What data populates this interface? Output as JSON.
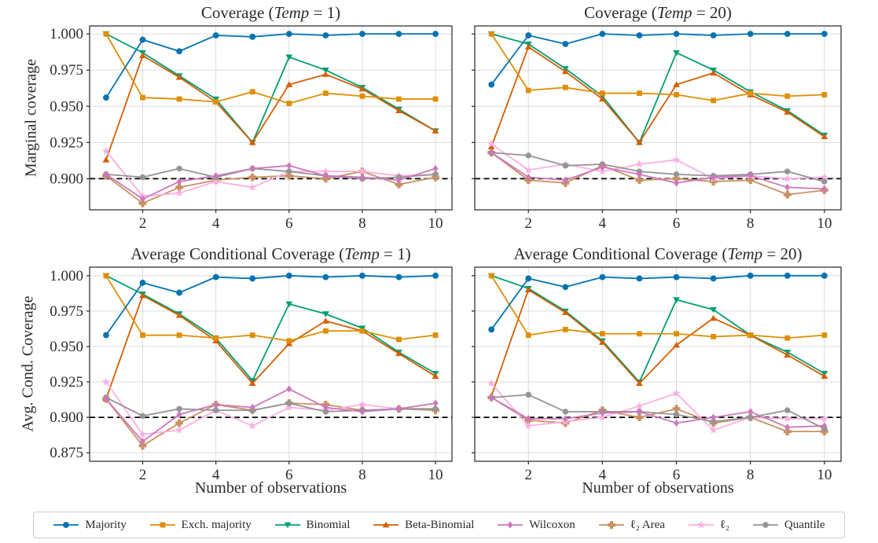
{
  "figure": {
    "x_label": "Number of observations",
    "x_ticks": [
      2,
      4,
      6,
      8,
      10
    ],
    "x_tick_labels": [
      "2",
      "4",
      "6",
      "8",
      "10"
    ],
    "x_range": [
      0.55,
      10.45
    ],
    "dashed_line_y": 0.9,
    "grid_color": "#dcdcdc",
    "spine_color": "#262626",
    "dashed_line_color": "#000000",
    "background_color": "#ffffff",
    "legend_border_color": "#cccccc"
  },
  "series_meta": [
    {
      "name": "Majority",
      "slug": "majority",
      "color": "#0173b2",
      "marker": "circle"
    },
    {
      "name": "Exch. majority",
      "slug": "exch-majority",
      "color": "#de8f05",
      "marker": "square"
    },
    {
      "name": "Binomial",
      "slug": "binomial",
      "color": "#029e73",
      "marker": "triangle-down"
    },
    {
      "name": "Beta-Binomial",
      "slug": "beta-binomial",
      "color": "#d55e00",
      "marker": "triangle-up"
    },
    {
      "name": "Wilcoxon",
      "slug": "wilcoxon",
      "color": "#cc78bc",
      "marker": "diamond"
    },
    {
      "name": "ℓ₂ Area",
      "slug": "l2-area",
      "color": "#ca9161",
      "marker": "plus"
    },
    {
      "name": "ℓ₂",
      "slug": "l2",
      "color": "#fbafe4",
      "marker": "star"
    },
    {
      "name": "Quantile",
      "slug": "quantile",
      "color": "#949494",
      "marker": "octagon"
    }
  ],
  "chart_data": [
    {
      "type": "line",
      "title": "Coverage (Temp = 1)",
      "title_parts": {
        "pre": "Coverage (",
        "math": "Temp",
        "post": " = 1)"
      },
      "ylabel": "Marginal coverage",
      "xlabel": "",
      "x": [
        1,
        2,
        3,
        4,
        5,
        6,
        7,
        8,
        9,
        10
      ],
      "yticks": [
        0.9,
        0.925,
        0.95,
        0.975,
        1.0
      ],
      "ytick_labels": [
        "0.900",
        "0.925",
        "0.950",
        "0.975",
        "1.000"
      ],
      "ylim": [
        0.8785,
        1.0055
      ],
      "grid": true,
      "series": [
        {
          "name": "Majority",
          "values": [
            0.956,
            0.996,
            0.988,
            0.999,
            0.998,
            1.0,
            0.999,
            1.0,
            1.0,
            1.0
          ]
        },
        {
          "name": "Exch. majority",
          "values": [
            1.0,
            0.956,
            0.955,
            0.953,
            0.96,
            0.952,
            0.959,
            0.957,
            0.955,
            0.955
          ]
        },
        {
          "name": "Binomial",
          "values": [
            1.0,
            0.987,
            0.971,
            0.955,
            0.925,
            0.984,
            0.975,
            0.963,
            0.948,
            0.933
          ]
        },
        {
          "name": "Beta-Binomial",
          "values": [
            0.913,
            0.985,
            0.97,
            0.953,
            0.925,
            0.965,
            0.972,
            0.962,
            0.947,
            0.933
          ]
        },
        {
          "name": "Wilcoxon",
          "values": [
            0.903,
            0.886,
            0.898,
            0.902,
            0.907,
            0.909,
            0.902,
            0.901,
            0.899,
            0.907
          ]
        },
        {
          "name": "ℓ₂ Area",
          "values": [
            0.902,
            0.883,
            0.894,
            0.899,
            0.901,
            0.902,
            0.9,
            0.905,
            0.896,
            0.901
          ]
        },
        {
          "name": "ℓ₂",
          "values": [
            0.919,
            0.888,
            0.89,
            0.898,
            0.894,
            0.905,
            0.905,
            0.905,
            0.902,
            0.903
          ]
        },
        {
          "name": "Quantile",
          "values": [
            0.903,
            0.901,
            0.907,
            0.901,
            0.907,
            0.905,
            0.902,
            0.9,
            0.901,
            0.903
          ]
        }
      ]
    },
    {
      "type": "line",
      "title": "Coverage (Temp = 20)",
      "title_parts": {
        "pre": "Coverage (",
        "math": "Temp",
        "post": " = 20)"
      },
      "ylabel": "",
      "xlabel": "",
      "x": [
        1,
        2,
        3,
        4,
        5,
        6,
        7,
        8,
        9,
        10
      ],
      "yticks": [
        0.9,
        0.925,
        0.95,
        0.975,
        1.0
      ],
      "ytick_labels": [
        "",
        "",
        "",
        "",
        ""
      ],
      "ylim": [
        0.8785,
        1.0055
      ],
      "grid": true,
      "series": [
        {
          "name": "Majority",
          "values": [
            0.965,
            0.999,
            0.993,
            1.0,
            0.999,
            1.0,
            0.999,
            1.0,
            1.0,
            1.0
          ]
        },
        {
          "name": "Exch. majority",
          "values": [
            1.0,
            0.961,
            0.963,
            0.959,
            0.959,
            0.958,
            0.954,
            0.959,
            0.957,
            0.958
          ]
        },
        {
          "name": "Binomial",
          "values": [
            1.0,
            0.993,
            0.976,
            0.957,
            0.925,
            0.987,
            0.975,
            0.96,
            0.947,
            0.93
          ]
        },
        {
          "name": "Beta-Binomial",
          "values": [
            0.922,
            0.991,
            0.974,
            0.955,
            0.925,
            0.965,
            0.973,
            0.958,
            0.946,
            0.929
          ]
        },
        {
          "name": "Wilcoxon",
          "values": [
            0.918,
            0.901,
            0.899,
            0.908,
            0.903,
            0.897,
            0.901,
            0.902,
            0.894,
            0.893
          ]
        },
        {
          "name": "ℓ₂ Area",
          "values": [
            0.918,
            0.899,
            0.897,
            0.909,
            0.899,
            0.9,
            0.898,
            0.899,
            0.889,
            0.892
          ]
        },
        {
          "name": "ℓ₂",
          "values": [
            0.924,
            0.906,
            0.91,
            0.905,
            0.91,
            0.913,
            0.9,
            0.902,
            0.9,
            0.901
          ]
        },
        {
          "name": "Quantile",
          "values": [
            0.918,
            0.916,
            0.909,
            0.91,
            0.905,
            0.903,
            0.902,
            0.903,
            0.905,
            0.898
          ]
        }
      ]
    },
    {
      "type": "line",
      "title": "Average Conditional Coverage (Temp = 1)",
      "title_parts": {
        "pre": "Average Conditional Coverage (",
        "math": "Temp",
        "post": " = 1)"
      },
      "ylabel": "Avg. Cond. Coverage",
      "xlabel": "Number of observations",
      "x": [
        1,
        2,
        3,
        4,
        5,
        6,
        7,
        8,
        9,
        10
      ],
      "yticks": [
        0.875,
        0.9,
        0.925,
        0.95,
        0.975,
        1.0
      ],
      "ytick_labels": [
        "0.875",
        "0.900",
        "0.925",
        "0.950",
        "0.975",
        "1.000"
      ],
      "ylim": [
        0.869,
        1.006
      ],
      "grid": true,
      "series": [
        {
          "name": "Majority",
          "values": [
            0.958,
            0.995,
            0.988,
            0.999,
            0.998,
            1.0,
            0.999,
            1.0,
            0.999,
            1.0
          ]
        },
        {
          "name": "Exch. majority",
          "values": [
            1.0,
            0.958,
            0.958,
            0.956,
            0.958,
            0.954,
            0.961,
            0.961,
            0.955,
            0.958
          ]
        },
        {
          "name": "Binomial",
          "values": [
            1.0,
            0.987,
            0.973,
            0.956,
            0.926,
            0.98,
            0.973,
            0.963,
            0.946,
            0.931
          ]
        },
        {
          "name": "Beta-Binomial",
          "values": [
            0.913,
            0.986,
            0.972,
            0.954,
            0.924,
            0.952,
            0.968,
            0.961,
            0.945,
            0.929
          ]
        },
        {
          "name": "Wilcoxon",
          "values": [
            0.913,
            0.883,
            0.902,
            0.909,
            0.907,
            0.92,
            0.907,
            0.904,
            0.906,
            0.91
          ]
        },
        {
          "name": "ℓ₂ Area",
          "values": [
            0.913,
            0.88,
            0.896,
            0.909,
            0.905,
            0.91,
            0.909,
            0.905,
            0.906,
            0.905
          ]
        },
        {
          "name": "ℓ₂",
          "values": [
            0.925,
            0.888,
            0.891,
            0.905,
            0.894,
            0.907,
            0.905,
            0.909,
            0.906,
            0.906
          ]
        },
        {
          "name": "Quantile",
          "values": [
            0.914,
            0.901,
            0.906,
            0.905,
            0.905,
            0.91,
            0.904,
            0.905,
            0.906,
            0.906
          ]
        }
      ]
    },
    {
      "type": "line",
      "title": "Average Conditional Coverage (Temp = 20)",
      "title_parts": {
        "pre": "Average Conditional Coverage (",
        "math": "Temp",
        "post": " = 20)"
      },
      "ylabel": "",
      "xlabel": "Number of observations",
      "x": [
        1,
        2,
        3,
        4,
        5,
        6,
        7,
        8,
        9,
        10
      ],
      "yticks": [
        0.875,
        0.9,
        0.925,
        0.95,
        0.975,
        1.0
      ],
      "ytick_labels": [
        "",
        "",
        "",
        "",
        "",
        ""
      ],
      "ylim": [
        0.869,
        1.006
      ],
      "grid": true,
      "series": [
        {
          "name": "Majority",
          "values": [
            0.962,
            0.998,
            0.992,
            0.999,
            0.998,
            0.999,
            0.998,
            1.0,
            1.0,
            1.0
          ]
        },
        {
          "name": "Exch. majority",
          "values": [
            1.0,
            0.958,
            0.962,
            0.959,
            0.959,
            0.959,
            0.957,
            0.958,
            0.956,
            0.958
          ]
        },
        {
          "name": "Binomial",
          "values": [
            1.0,
            0.991,
            0.975,
            0.954,
            0.925,
            0.983,
            0.976,
            0.958,
            0.946,
            0.931
          ]
        },
        {
          "name": "Beta-Binomial",
          "values": [
            0.915,
            0.99,
            0.974,
            0.953,
            0.924,
            0.951,
            0.97,
            0.958,
            0.944,
            0.929
          ]
        },
        {
          "name": "Wilcoxon",
          "values": [
            0.914,
            0.899,
            0.899,
            0.903,
            0.904,
            0.896,
            0.9,
            0.904,
            0.893,
            0.894
          ]
        },
        {
          "name": "ℓ₂ Area",
          "values": [
            0.914,
            0.898,
            0.896,
            0.905,
            0.9,
            0.906,
            0.896,
            0.9,
            0.89,
            0.89
          ]
        },
        {
          "name": "ℓ₂",
          "values": [
            0.924,
            0.894,
            0.897,
            0.9,
            0.908,
            0.917,
            0.891,
            0.9,
            0.899,
            0.899
          ]
        },
        {
          "name": "Quantile",
          "values": [
            0.914,
            0.916,
            0.904,
            0.904,
            0.904,
            0.902,
            0.897,
            0.9,
            0.905,
            0.892
          ]
        }
      ]
    }
  ],
  "legend": {
    "items": [
      "Majority",
      "Exch. majority",
      "Binomial",
      "Beta-Binomial",
      "Wilcoxon",
      "ℓ₂ Area",
      "ℓ₂",
      "Quantile"
    ]
  }
}
